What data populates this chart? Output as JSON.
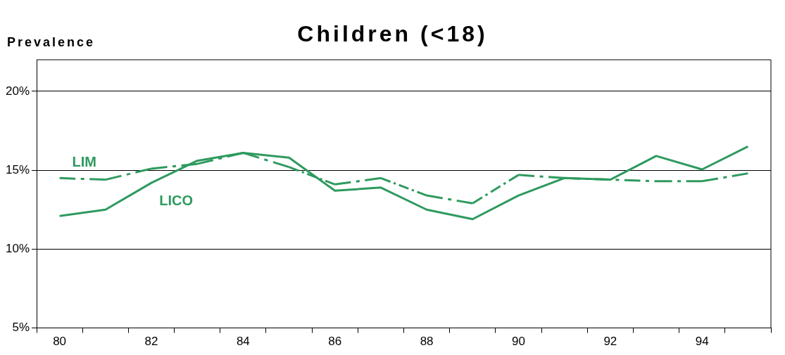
{
  "chart_data": {
    "type": "line",
    "title": "Children (<18)",
    "ylabel": "Prevalence",
    "categories": [
      "80",
      null,
      "82",
      null,
      "84",
      null,
      "86",
      null,
      "88",
      null,
      "90",
      null,
      "92",
      null,
      "94",
      null
    ],
    "series": [
      {
        "name": "LIM",
        "color": "#2e9a5e",
        "line_style": "dashed",
        "values": [
          14.5,
          14.4,
          15.1,
          15.4,
          16.1,
          15.2,
          14.1,
          14.5,
          13.4,
          12.9,
          14.7,
          14.5,
          14.4,
          14.3,
          14.3,
          14.8
        ]
      },
      {
        "name": "LICO",
        "color": "#2e9a5e",
        "line_style": "solid",
        "values": [
          12.1,
          12.5,
          14.2,
          15.6,
          16.1,
          15.8,
          13.7,
          13.9,
          12.5,
          11.9,
          13.4,
          14.5,
          14.4,
          15.9,
          15.05,
          16.5
        ]
      }
    ],
    "ylim": [
      5,
      22
    ],
    "yticks": [
      {
        "value": 5,
        "label": "5%"
      },
      {
        "value": 10,
        "label": "10%"
      },
      {
        "value": 15,
        "label": "15%"
      },
      {
        "value": 20,
        "label": "20%"
      }
    ],
    "grid": "y",
    "marker": "none",
    "legend": false
  }
}
